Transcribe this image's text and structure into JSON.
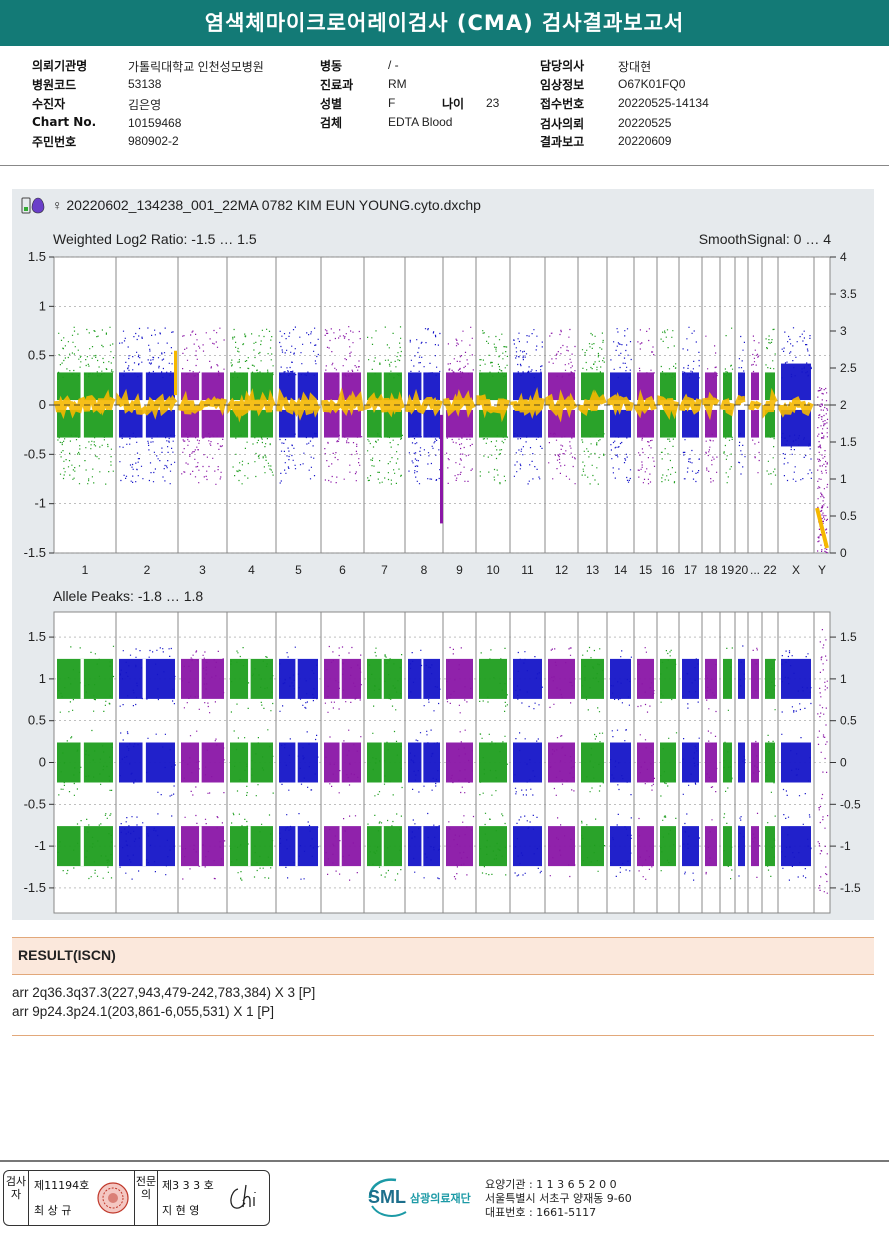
{
  "report": {
    "title": "염색체마이크로어레이검사 (CMA) 검사결과보고서"
  },
  "patient": {
    "col1": [
      {
        "label": "의뢰기관명",
        "value": "가톨릭대학교 인천성모병원"
      },
      {
        "label": "병원코드",
        "value": "53138"
      },
      {
        "label": "수진자",
        "value": "김은영"
      },
      {
        "label": "Chart No.",
        "value": "10159468"
      },
      {
        "label": "주민번호",
        "value": "980902-2"
      }
    ],
    "col2": [
      {
        "label": "병동",
        "value": "/ -"
      },
      {
        "label": "진료과",
        "value": "RM"
      },
      {
        "label": "성별",
        "value": "F"
      },
      {
        "label": "검체",
        "value": "EDTA Blood"
      }
    ],
    "age": {
      "label": "나이",
      "value": "23"
    },
    "col3": [
      {
        "label": "담당의사",
        "value": "장대현"
      },
      {
        "label": "임상정보",
        "value": "O67K01FQ0"
      },
      {
        "label": "접수번호",
        "value": "20220525-14134"
      },
      {
        "label": "검사의뢰",
        "value": "20220525"
      },
      {
        "label": "결과보고",
        "value": "20220609"
      }
    ]
  },
  "figure": {
    "filename": "♀ 20220602_134238_001_22MA 0782 KIM EUN YOUNG.cyto.dxchp"
  },
  "chart_data": [
    {
      "type": "scatter",
      "title": "Weighted Log2 Ratio: -1.5 … 1.5",
      "right_title": "SmoothSignal: 0 … 4",
      "ylim": [
        -1.5,
        1.5
      ],
      "y2lim": [
        0,
        4
      ],
      "yticks": [
        "1.5",
        "1",
        "0.5",
        "0",
        "-0.5",
        "-1",
        "-1.5"
      ],
      "y2ticks": [
        "4",
        "3.5",
        "3",
        "2.5",
        "2",
        "1.5",
        "1",
        "0.5",
        "0"
      ],
      "categories": [
        "1",
        "2",
        "3",
        "4",
        "5",
        "6",
        "7",
        "8",
        "9",
        "10",
        "11",
        "12",
        "13",
        "14",
        "15",
        "16",
        "17",
        "18",
        "19",
        "20",
        "...",
        "22",
        "X",
        "Y"
      ],
      "series": [
        {
          "name": "Weighted Log2 Ratio",
          "colors": [
            "#1f9e1f",
            "#1515c8",
            "#8a16a6"
          ]
        },
        {
          "name": "SmoothSignal",
          "color": "#f5b800"
        }
      ]
    },
    {
      "type": "scatter",
      "title": "Allele Peaks: -1.8 … 1.8",
      "ylim": [
        -1.8,
        1.8
      ],
      "yticks": [
        "1.5",
        "1",
        "0.5",
        "0",
        "-0.5",
        "-1",
        "-1.5"
      ],
      "peaks": [
        1,
        0,
        -1
      ]
    }
  ],
  "result": {
    "heading": "RESULT(ISCN)",
    "lines": [
      "arr 2q36.3q37.3(227,943,479-242,783,384) X 3 [P]",
      "arr 9p24.3p24.1(203,861-6,055,531) X 1 [P]"
    ]
  },
  "footer": {
    "examiner_label": "검사자",
    "examiner_no": "제11194호",
    "examiner_name": "최 상 규",
    "specialist_label": "전문의",
    "specialist_no": "제3 3 3 호",
    "specialist_name": "지 현 영",
    "logo_text": "SML",
    "org_name": "삼광의료재단",
    "line1": "요양기관 : 1 1 3 6 5 2 0 0",
    "line2": "서울특별시 서초구 양재동 9-60",
    "line3": "대표번호 : 1661-5117"
  },
  "colors": {
    "green": "#1f9e1f",
    "blue": "#1515c8",
    "purple": "#8a16a6",
    "orange": "#f5b800",
    "teal": "#137a76"
  }
}
